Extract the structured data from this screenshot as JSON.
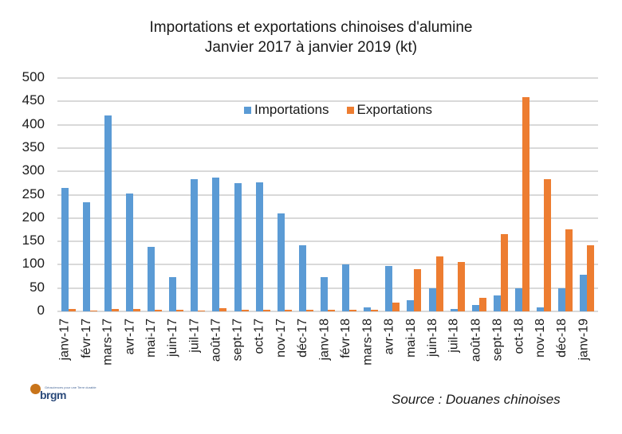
{
  "title": {
    "line1": "Importations et exportations chinoises d'alumine",
    "line2": "Janvier 2017 à janvier 2019 (kt)"
  },
  "legend": {
    "importations": "Importations",
    "exportations": "Exportations"
  },
  "colors": {
    "importations": "#5b9bd5",
    "exportations": "#ed7d31",
    "grid": "#d9d9d9"
  },
  "source": "Source : Douanes chinoises",
  "logo": {
    "text": "brgm",
    "tagline": "Géosciences pour une Terre durable"
  },
  "y_ticks": [
    "500",
    "450",
    "400",
    "350",
    "300",
    "250",
    "200",
    "150",
    "100",
    "50",
    "0"
  ],
  "chart_data": {
    "type": "bar",
    "title": "Importations et exportations chinoises d'alumine — Janvier 2017 à janvier 2019 (kt)",
    "xlabel": "",
    "ylabel": "kt",
    "ylim": [
      0,
      500
    ],
    "grid": true,
    "legend_position": "top-inside",
    "categories": [
      "janv-17",
      "févr-17",
      "mars-17",
      "avr-17",
      "mai-17",
      "juin-17",
      "juil-17",
      "août-17",
      "sept-17",
      "oct-17",
      "nov-17",
      "déc-17",
      "janv-18",
      "févr-18",
      "mars-18",
      "avr-18",
      "mai-18",
      "juin-18",
      "juil-18",
      "août-18",
      "sept-18",
      "oct-18",
      "nov-18",
      "déc-18",
      "janv-19"
    ],
    "series": [
      {
        "name": "Importations",
        "color": "#5b9bd5",
        "values": [
          265,
          234,
          420,
          252,
          139,
          73,
          284,
          286,
          274,
          277,
          210,
          142,
          73,
          101,
          9,
          97,
          24,
          49,
          5,
          14,
          34,
          49,
          9,
          49,
          79
        ]
      },
      {
        "name": "Exportations",
        "color": "#ed7d31",
        "values": [
          5,
          2,
          5,
          5,
          3,
          3,
          1,
          7,
          3,
          3,
          3,
          3,
          3,
          3,
          3,
          19,
          90,
          118,
          106,
          29,
          165,
          459,
          284,
          176,
          142
        ]
      }
    ],
    "annotations": [
      "Source : Douanes chinoises"
    ]
  }
}
